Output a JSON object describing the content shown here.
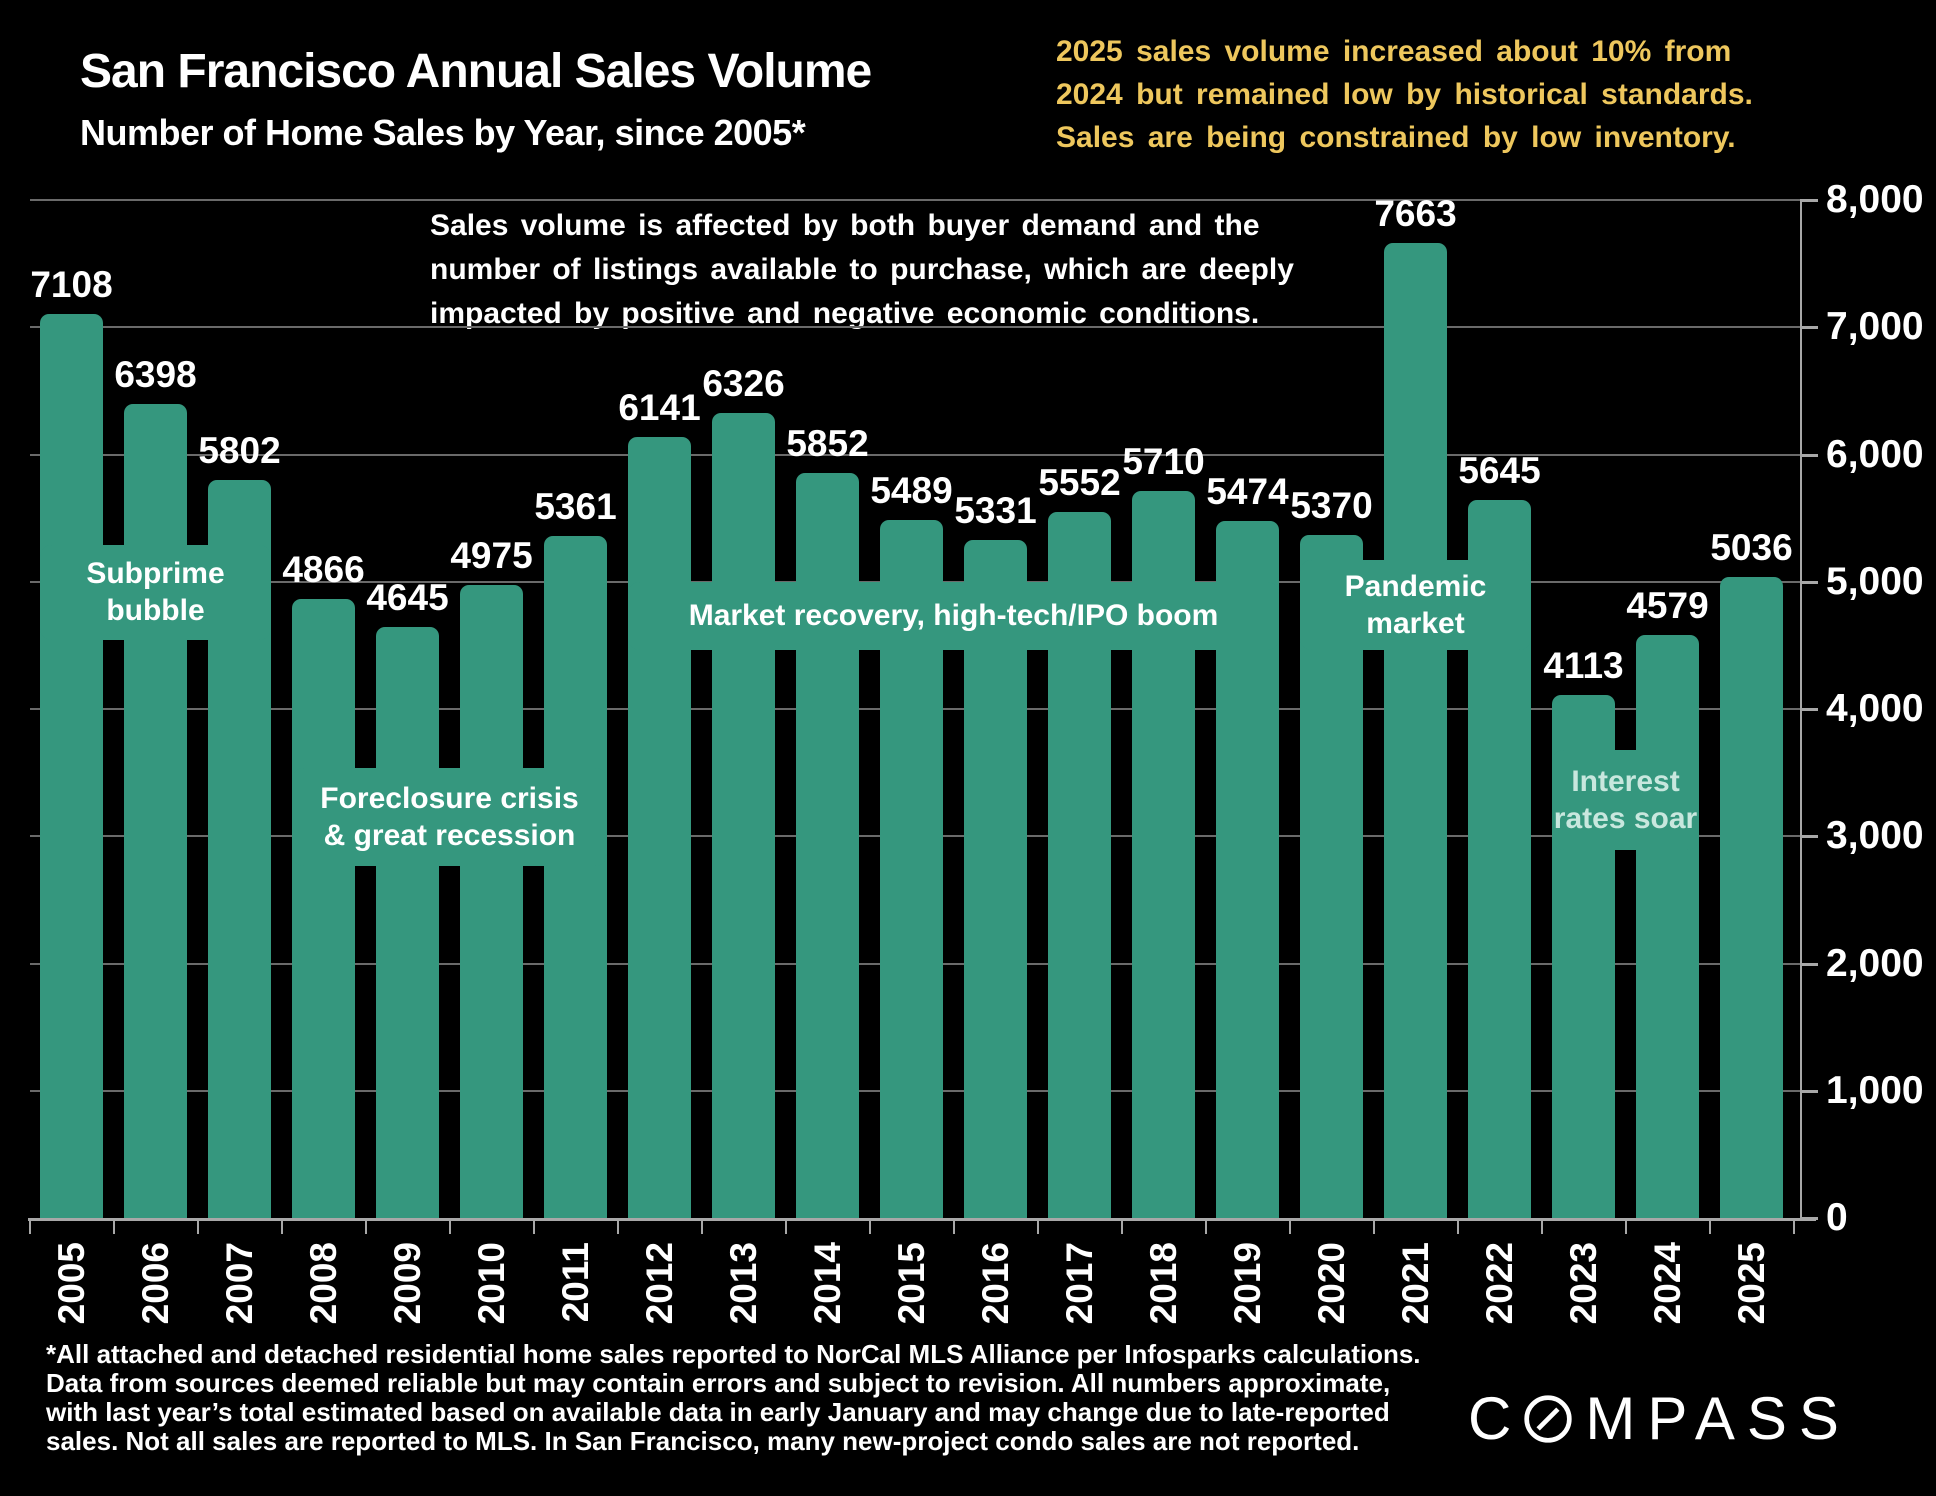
{
  "header": {
    "title": "San Francisco Annual Sales Volume",
    "subtitle": "Number of Home Sales by Year, since 2005*"
  },
  "highlight_note": {
    "lines": [
      "2025 sales volume increased about 10% from",
      "2024 but remained low by historical standards.",
      "Sales are being constrained by low inventory."
    ]
  },
  "chart_note": {
    "lines": [
      "Sales volume is affected by both buyer demand and the",
      "number of listings available to purchase, which are deeply",
      "impacted by positive and negative economic conditions."
    ]
  },
  "chart_data": {
    "type": "bar",
    "title": "San Francisco Annual Sales Volume",
    "subtitle": "Number of Home Sales by Year, since 2005*",
    "categories": [
      "2005",
      "2006",
      "2007",
      "2008",
      "2009",
      "2010",
      "2011",
      "2012",
      "2013",
      "2014",
      "2015",
      "2016",
      "2017",
      "2018",
      "2019",
      "2020",
      "2021",
      "2022",
      "2023",
      "2024",
      "2025"
    ],
    "values": [
      7108,
      6398,
      5802,
      4866,
      4645,
      4975,
      5361,
      6141,
      6326,
      5852,
      5489,
      5331,
      5552,
      5710,
      5474,
      5370,
      7663,
      5645,
      4113,
      4579,
      5036
    ],
    "xlabel": "",
    "ylabel": "",
    "ylim": [
      0,
      8000
    ],
    "ytick_interval": 1000,
    "grid": true,
    "legend": false,
    "y_axis_side": "right",
    "annotations": [
      {
        "label_lines": [
          "Subprime",
          "bubble"
        ],
        "start_year": "2005",
        "end_year": "2007",
        "value_top": 5290,
        "value_bottom": 4545,
        "text_color": "#ffffff"
      },
      {
        "label_lines": [
          "Foreclosure crisis",
          "& great recession"
        ],
        "start_year": "2008",
        "end_year": "2011",
        "value_top": 3540,
        "value_bottom": 2765,
        "text_color": "#ffffff"
      },
      {
        "label_lines": [
          "Market recovery, high-tech/IPO boom"
        ],
        "start_year": "2012",
        "end_year": "2019",
        "value_top": 5000,
        "value_bottom": 4465,
        "text_color": "#ffffff"
      },
      {
        "label_lines": [
          "Pandemic",
          "market"
        ],
        "start_year": "2020",
        "end_year": "2022",
        "value_top": 5170,
        "value_bottom": 4465,
        "text_color": "#ffffff"
      },
      {
        "label_lines": [
          "Interest",
          "rates soar"
        ],
        "start_year": "2023",
        "end_year": "2024",
        "value_top": 3680,
        "value_bottom": 2890,
        "text_color": "#c8e7de"
      }
    ]
  },
  "footnote": {
    "lines": [
      "*All attached and detached residential home sales reported to NorCal MLS Alliance per Infosparks calculations.",
      "Data from sources deemed reliable but may contain errors and subject to revision. All numbers approximate,",
      "with last year’s total estimated based on available data in early January and may change due to late-reported",
      "sales. Not all sales are reported to MLS. In San Francisco, many new-project condo sales are not reported."
    ]
  },
  "logo": {
    "c": "C",
    "mpass": "MPASS",
    "name": "COMPASS"
  },
  "colors": {
    "background": "#000000",
    "bar": "#35977e",
    "accent_yellow": "#eec75d",
    "grid": "#6a6a6a",
    "axis": "#a8a8a8",
    "text": "#ffffff",
    "interest_label": "#c8e7de"
  }
}
